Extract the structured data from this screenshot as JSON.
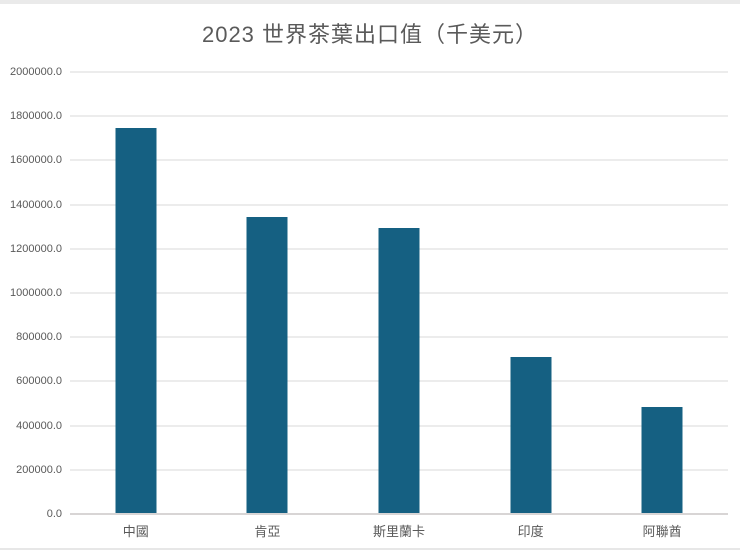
{
  "chart_data": {
    "type": "bar",
    "title": "2023 世界茶葉出口值（千美元）",
    "categories": [
      "中國",
      "肯亞",
      "斯里蘭卡",
      "印度",
      "阿聯酋"
    ],
    "values": [
      1740000,
      1340000,
      1290000,
      705000,
      478000
    ],
    "xlabel": "",
    "ylabel": "",
    "ylim": [
      0,
      2000000
    ],
    "ytick_step": 200000,
    "ytick_format": "fixed-1-decimal",
    "grid": true,
    "legend_position": "none",
    "bar_color": "#156082",
    "gridline_color": "#ececec",
    "axis_line_color": "#d8d5d5",
    "tick_label_color": "#595959",
    "title_color": "#5a5a5a"
  }
}
